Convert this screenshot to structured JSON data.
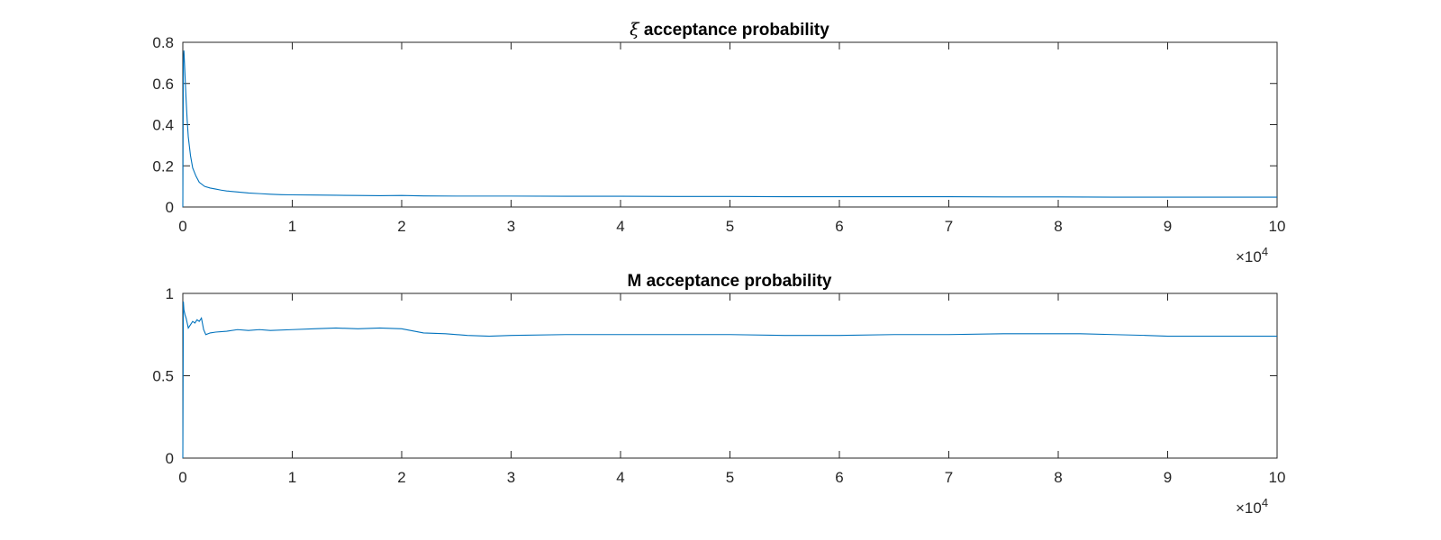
{
  "chart_data": [
    {
      "type": "line",
      "title": "ξ acceptance probability",
      "title_symbol": "ξ",
      "title_rest": "acceptance probability",
      "xlabel": "",
      "ylabel": "",
      "xlim": [
        0,
        100000
      ],
      "ylim": [
        0,
        0.8
      ],
      "xticks": [
        0,
        10000,
        20000,
        30000,
        40000,
        50000,
        60000,
        70000,
        80000,
        90000,
        100000
      ],
      "xtick_labels": [
        "0",
        "1",
        "2",
        "3",
        "4",
        "5",
        "6",
        "7",
        "8",
        "9",
        "10"
      ],
      "yticks": [
        0,
        0.2,
        0.4,
        0.6,
        0.8
      ],
      "ytick_labels": [
        "0",
        "0.2",
        "0.4",
        "0.6",
        "0.8"
      ],
      "x_multiplier": {
        "base": "×10",
        "exponent": "4"
      },
      "grid": false,
      "color": "#0072BD",
      "series": [
        {
          "x": [
            0,
            50,
            100,
            200,
            300,
            400,
            500,
            700,
            900,
            1200,
            1500,
            2000,
            2500,
            3000,
            3500,
            4000,
            5000,
            6000,
            7000,
            8000,
            9000,
            10000,
            12000,
            14000,
            16000,
            18000,
            20000,
            22000,
            25000,
            30000,
            35000,
            40000,
            45000,
            50000,
            55000,
            60000,
            65000,
            70000,
            75000,
            80000,
            85000,
            90000,
            95000,
            100000
          ],
          "y": [
            0.0,
            0.7,
            0.76,
            0.64,
            0.52,
            0.42,
            0.34,
            0.25,
            0.19,
            0.15,
            0.12,
            0.1,
            0.092,
            0.087,
            0.082,
            0.078,
            0.073,
            0.068,
            0.065,
            0.062,
            0.06,
            0.059,
            0.058,
            0.057,
            0.056,
            0.055,
            0.056,
            0.054,
            0.053,
            0.053,
            0.052,
            0.052,
            0.051,
            0.051,
            0.05,
            0.05,
            0.05,
            0.05,
            0.049,
            0.049,
            0.048,
            0.048,
            0.048,
            0.048
          ]
        }
      ]
    },
    {
      "type": "line",
      "title": "M acceptance probability",
      "xlabel": "",
      "ylabel": "",
      "xlim": [
        0,
        100000
      ],
      "ylim": [
        0,
        1
      ],
      "xticks": [
        0,
        10000,
        20000,
        30000,
        40000,
        50000,
        60000,
        70000,
        80000,
        90000,
        100000
      ],
      "xtick_labels": [
        "0",
        "1",
        "2",
        "3",
        "4",
        "5",
        "6",
        "7",
        "8",
        "9",
        "10"
      ],
      "yticks": [
        0,
        0.5,
        1
      ],
      "ytick_labels": [
        "0",
        "0.5",
        "1"
      ],
      "x_multiplier": {
        "base": "×10",
        "exponent": "4"
      },
      "grid": false,
      "color": "#0072BD",
      "series": [
        {
          "x": [
            0,
            50,
            100,
            200,
            300,
            400,
            500,
            700,
            900,
            1100,
            1300,
            1500,
            1700,
            1900,
            2100,
            2500,
            3000,
            4000,
            5000,
            6000,
            7000,
            8000,
            10000,
            12000,
            14000,
            16000,
            18000,
            20000,
            22000,
            24000,
            26000,
            28000,
            30000,
            35000,
            40000,
            45000,
            50000,
            55000,
            60000,
            65000,
            70000,
            75000,
            80000,
            82000,
            85000,
            88000,
            90000,
            95000,
            100000
          ],
          "y": [
            0.0,
            0.95,
            0.9,
            0.87,
            0.85,
            0.82,
            0.79,
            0.81,
            0.83,
            0.82,
            0.84,
            0.83,
            0.85,
            0.78,
            0.75,
            0.76,
            0.765,
            0.77,
            0.78,
            0.775,
            0.78,
            0.775,
            0.78,
            0.785,
            0.79,
            0.785,
            0.79,
            0.785,
            0.76,
            0.755,
            0.745,
            0.74,
            0.745,
            0.75,
            0.75,
            0.75,
            0.75,
            0.745,
            0.745,
            0.75,
            0.75,
            0.755,
            0.755,
            0.755,
            0.75,
            0.745,
            0.74,
            0.74,
            0.74
          ]
        }
      ]
    }
  ]
}
